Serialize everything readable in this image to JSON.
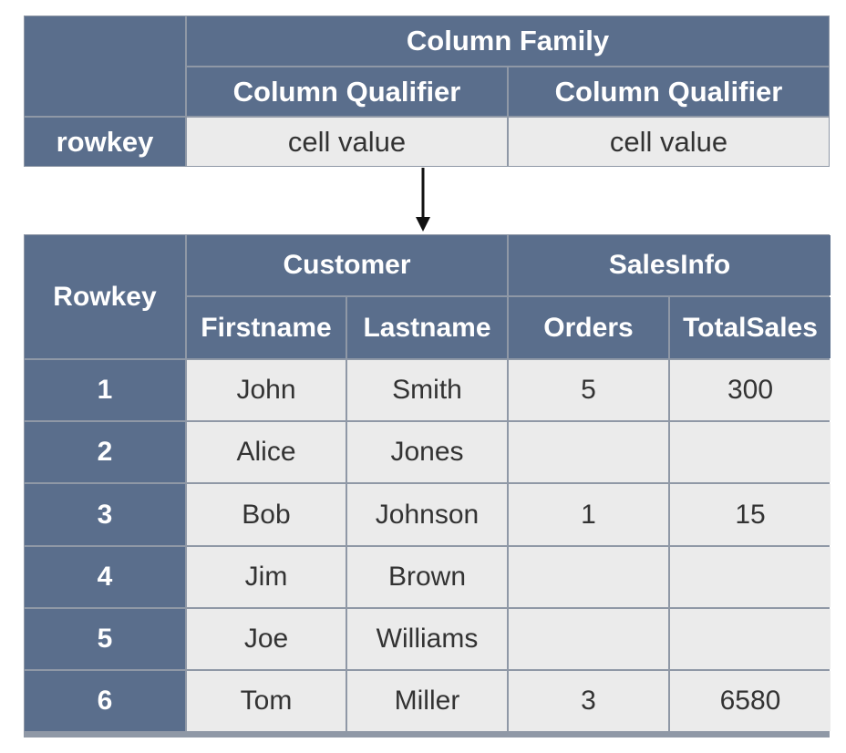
{
  "schema": {
    "column_family": "Column Family",
    "qualifiers": [
      "Column Qualifier",
      "Column Qualifier"
    ],
    "rowkey": "rowkey",
    "cell_values": [
      "cell value",
      "cell value"
    ]
  },
  "table": {
    "rowkey_header": "Rowkey",
    "families": [
      {
        "name": "Customer",
        "columns": [
          "Firstname",
          "Lastname"
        ]
      },
      {
        "name": "SalesInfo",
        "columns": [
          "Orders",
          "TotalSales"
        ]
      }
    ],
    "rows": [
      {
        "rowkey": "1",
        "cells": [
          "John",
          "Smith",
          "5",
          "300"
        ]
      },
      {
        "rowkey": "2",
        "cells": [
          "Alice",
          "Jones",
          "",
          ""
        ]
      },
      {
        "rowkey": "3",
        "cells": [
          "Bob",
          "Johnson",
          "1",
          "15"
        ]
      },
      {
        "rowkey": "4",
        "cells": [
          "Jim",
          "Brown",
          "",
          ""
        ]
      },
      {
        "rowkey": "5",
        "cells": [
          "Joe",
          "Williams",
          "",
          ""
        ]
      },
      {
        "rowkey": "6",
        "cells": [
          "Tom",
          "Miller",
          "3",
          "6580"
        ]
      }
    ]
  },
  "colors": {
    "header": "#5a6e8c",
    "cell": "#ebebeb",
    "border": "#8f98a6"
  },
  "icons": {
    "connector": "arrow-down-icon"
  }
}
